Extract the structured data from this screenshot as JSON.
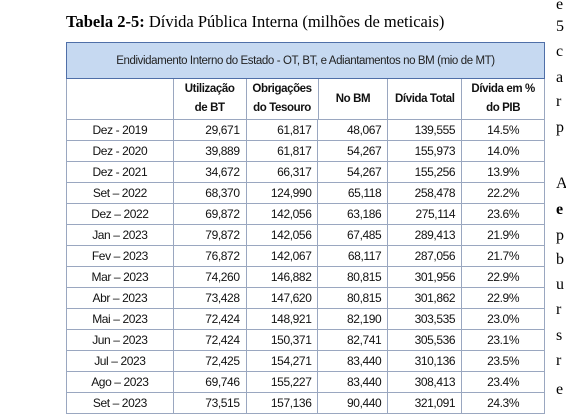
{
  "title": {
    "label": "Tabela 2-5:",
    "text": "Dívida Pública Interna (milhões de meticais)"
  },
  "table": {
    "caption": "Endividamento Interno do Estado - OT, BT, e Adiantamentos no BM (mio de MT)",
    "columns": [
      "Utilização de BT",
      "Obrigações do Tesouro",
      "No BM",
      "Dívida Total",
      "Dívida em % do PIB"
    ],
    "rows": [
      [
        "Dez - 2019",
        "29,671",
        "61,817",
        "48,067",
        "139,555",
        "14.5%"
      ],
      [
        "Dez - 2020",
        "39,889",
        "61,817",
        "54,267",
        "155,973",
        "14.0%"
      ],
      [
        "Dez - 2021",
        "34,672",
        "66,317",
        "54,267",
        "155,256",
        "13.9%"
      ],
      [
        "Set – 2022",
        "68,370",
        "124,990",
        "65,118",
        "258,478",
        "22.2%"
      ],
      [
        "Dez – 2022",
        "69,872",
        "142,056",
        "63,186",
        "275,114",
        "23.6%"
      ],
      [
        "Jan – 2023",
        "79,872",
        "142,056",
        "67,485",
        "289,413",
        "21.9%"
      ],
      [
        "Fev – 2023",
        "76,872",
        "142,067",
        "68,117",
        "287,056",
        "21.7%"
      ],
      [
        "Mar – 2023",
        "74,260",
        "146,882",
        "80,815",
        "301,956",
        "22.9%"
      ],
      [
        "Abr – 2023",
        "73,428",
        "147,620",
        "80,815",
        "301,862",
        "22.9%"
      ],
      [
        "Mai – 2023",
        "72,424",
        "148,921",
        "82,190",
        "303,535",
        "23.0%"
      ],
      [
        "Jun – 2023",
        "72,424",
        "150,371",
        "82,741",
        "305,536",
        "23.1%"
      ],
      [
        "Jul – 2023",
        "72,425",
        "154,271",
        "83,440",
        "310,136",
        "23.5%"
      ],
      [
        "Ago – 2023",
        "69,746",
        "155,227",
        "83,440",
        "308,413",
        "23.4%"
      ],
      [
        "Set – 2023",
        "73,515",
        "157,136",
        "90,440",
        "321,091",
        "24.3%"
      ]
    ]
  },
  "margin_text": [
    "e",
    "5",
    "c",
    "a",
    "r",
    "p",
    "A",
    "e",
    "p",
    "b",
    "u",
    "r",
    "s",
    "r",
    "e"
  ]
}
